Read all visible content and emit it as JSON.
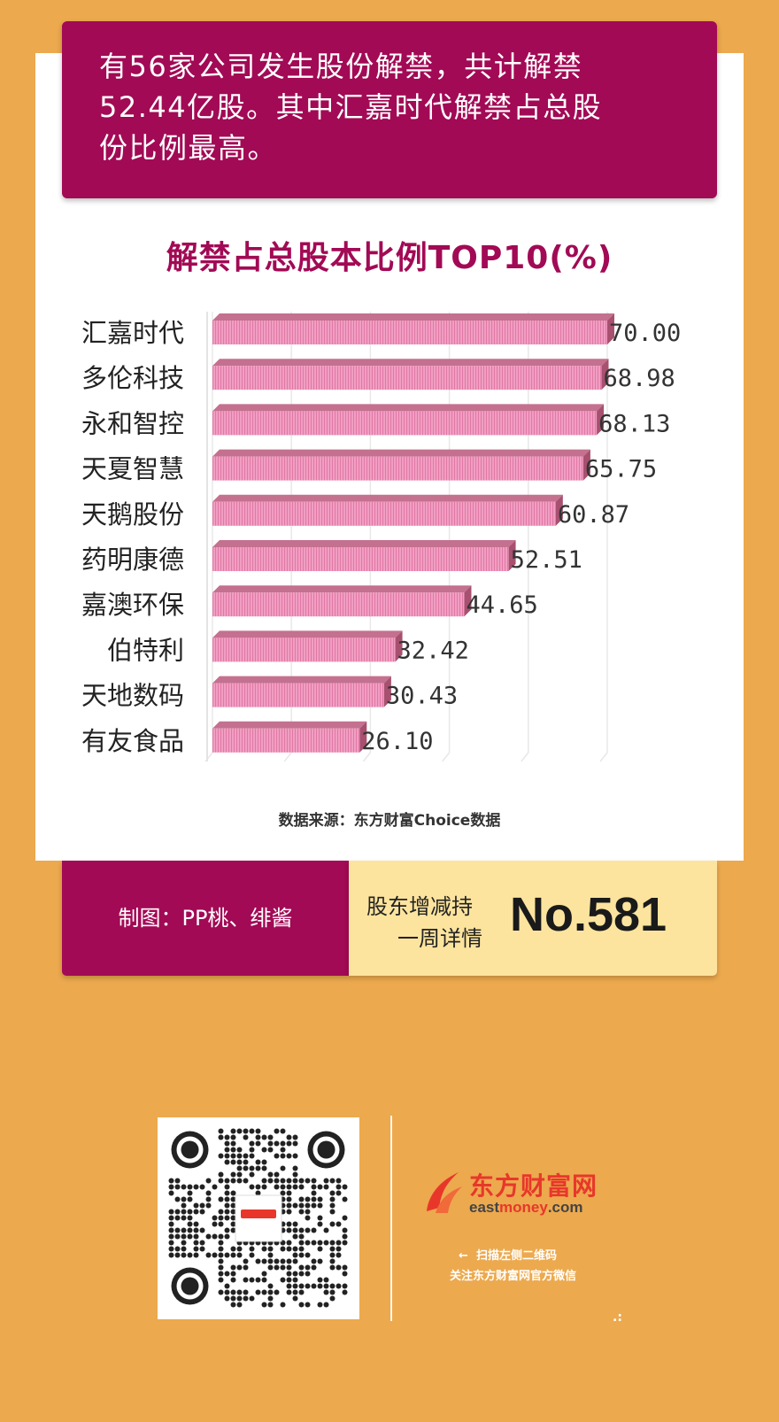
{
  "headline": {
    "line1": "有56家公司发生股份解禁，共计解禁",
    "line2": "52.44亿股。其中汇嘉时代解禁占总股",
    "line3": "份比例最高。"
  },
  "chart_data": {
    "type": "bar",
    "orientation": "horizontal",
    "title": "解禁占总股本比例TOP10(%)",
    "categories": [
      "汇嘉时代",
      "多伦科技",
      "永和智控",
      "天夏智慧",
      "天鹅股份",
      "药明康德",
      "嘉澳环保",
      "伯特利",
      "天地数码",
      "有友食品"
    ],
    "values": [
      70.0,
      68.98,
      68.13,
      65.75,
      60.87,
      52.51,
      44.65,
      32.42,
      30.43,
      26.1
    ],
    "value_labels": [
      "70.00",
      "68.98",
      "68.13",
      "65.75",
      "60.87",
      "52.51",
      "44.65",
      "32.42",
      "30.43",
      "26.10"
    ],
    "xlim": [
      0,
      70
    ],
    "grid": true,
    "bar_color": "#f19ec2",
    "source": "数据来源：东方财富Choice数据"
  },
  "footer": {
    "credit": "制图：PP桃、绯酱",
    "series_line1": "股东增减持",
    "series_line2": "一周详情",
    "issue": "No.581"
  },
  "qr": {
    "icon": "qr-code-icon"
  },
  "brand": {
    "name_cn": "东方财富网",
    "domain_part1": "east",
    "domain_part2": "money",
    "domain_part3": ".com",
    "scan_hint": "扫描左侧二维码",
    "follow_hint": "关注东方财富网官方微信",
    "accent_color": "#e8372a"
  },
  "colors": {
    "background": "#eca94e",
    "banner": "#a20a55",
    "footer_right": "#fce49e"
  }
}
